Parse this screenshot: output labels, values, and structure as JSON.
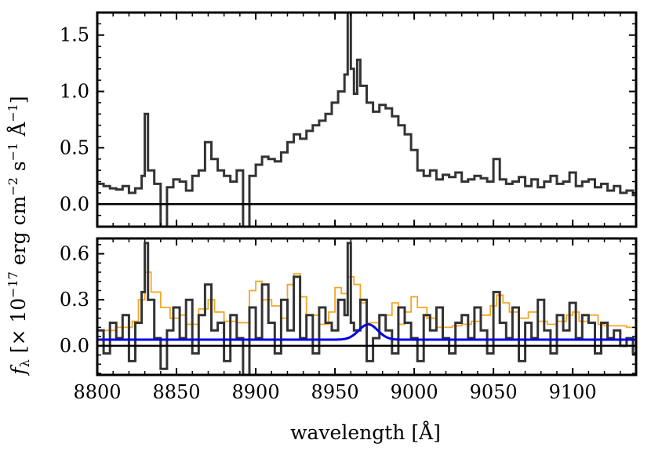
{
  "chart_data": [
    {
      "type": "line",
      "panel": "top",
      "xlim": [
        8800,
        9140
      ],
      "ylim": [
        -0.2,
        1.7
      ],
      "yticks": [
        0.0,
        0.5,
        1.0,
        1.5
      ],
      "ytick_labels": [
        "0.0",
        "0.5",
        "1.0",
        "1.5"
      ],
      "xticks": [
        8800,
        8850,
        8900,
        8950,
        9000,
        9050,
        9100
      ],
      "grid": false,
      "legend": "none",
      "colors": {
        "spectrum": "#333333",
        "zero_line": "#000000"
      },
      "series": [
        {
          "style": "step",
          "x": [
            8800,
            8804,
            8808,
            8812,
            8816,
            8820,
            8824,
            8828,
            8830,
            8832,
            8836,
            8840,
            8844,
            8848,
            8852,
            8856,
            8860,
            8864,
            8868,
            8872,
            8876,
            8880,
            8884,
            8888,
            8892,
            8896,
            8900,
            8904,
            8908,
            8912,
            8916,
            8920,
            8924,
            8928,
            8932,
            8936,
            8940,
            8944,
            8948,
            8952,
            8956,
            8958,
            8960,
            8962,
            8964,
            8966,
            8970,
            8974,
            8978,
            8982,
            8986,
            8990,
            8994,
            8998,
            9002,
            9006,
            9010,
            9014,
            9018,
            9022,
            9026,
            9030,
            9034,
            9038,
            9042,
            9046,
            9050,
            9054,
            9058,
            9062,
            9066,
            9070,
            9074,
            9078,
            9082,
            9086,
            9090,
            9094,
            9098,
            9102,
            9106,
            9110,
            9114,
            9118,
            9122,
            9126,
            9130,
            9134,
            9138
          ],
          "y": [
            0.18,
            0.16,
            0.14,
            0.13,
            0.16,
            0.1,
            0.14,
            0.25,
            0.8,
            0.3,
            0.18,
            -0.2,
            0.15,
            0.22,
            0.2,
            0.12,
            0.25,
            0.3,
            0.55,
            0.4,
            0.3,
            0.25,
            0.2,
            0.3,
            -0.2,
            0.25,
            0.35,
            0.42,
            0.4,
            0.38,
            0.46,
            0.55,
            0.62,
            0.58,
            0.65,
            0.7,
            0.74,
            0.8,
            0.9,
            1.0,
            1.15,
            1.7,
            1.2,
            0.98,
            1.28,
            1.05,
            0.9,
            0.82,
            0.88,
            0.85,
            0.78,
            0.7,
            0.62,
            0.48,
            0.3,
            0.25,
            0.3,
            0.22,
            0.26,
            0.24,
            0.28,
            0.2,
            0.22,
            0.25,
            0.23,
            0.2,
            0.4,
            0.22,
            0.18,
            0.2,
            0.24,
            0.16,
            0.22,
            0.15,
            0.2,
            0.25,
            0.18,
            0.2,
            0.28,
            0.16,
            0.2,
            0.22,
            0.15,
            0.18,
            0.12,
            0.16,
            0.1,
            0.12,
            0.08
          ]
        }
      ]
    },
    {
      "type": "line",
      "panel": "bottom",
      "xlim": [
        8800,
        9140
      ],
      "ylim": [
        -0.19,
        0.7
      ],
      "yticks": [
        0.0,
        0.3,
        0.6
      ],
      "ytick_labels": [
        "0.0",
        "0.3",
        "0.6"
      ],
      "xticks": [
        8800,
        8850,
        8900,
        8950,
        9000,
        9050,
        9100
      ],
      "xtick_labels": [
        "8800",
        "8850",
        "8900",
        "8950",
        "9000",
        "9050",
        "9100"
      ],
      "grid": false,
      "legend": "none",
      "colors": {
        "spectrum": "#333333",
        "error": "#f5a623",
        "model": "#0000e6",
        "zero_line": "#000000"
      },
      "series": [
        {
          "style": "step",
          "role": "spectrum",
          "x": [
            8800,
            8804,
            8808,
            8812,
            8816,
            8820,
            8824,
            8828,
            8830,
            8832,
            8836,
            8840,
            8844,
            8848,
            8852,
            8856,
            8860,
            8864,
            8868,
            8872,
            8876,
            8880,
            8884,
            8888,
            8892,
            8896,
            8900,
            8904,
            8908,
            8912,
            8916,
            8920,
            8924,
            8928,
            8932,
            8936,
            8940,
            8944,
            8948,
            8952,
            8956,
            8958,
            8960,
            8962,
            8966,
            8970,
            8974,
            8978,
            8982,
            8986,
            8990,
            8994,
            8998,
            9002,
            9006,
            9010,
            9014,
            9018,
            9022,
            9026,
            9030,
            9034,
            9038,
            9042,
            9046,
            9050,
            9054,
            9058,
            9062,
            9066,
            9070,
            9074,
            9078,
            9082,
            9086,
            9090,
            9094,
            9098,
            9102,
            9106,
            9110,
            9114,
            9118,
            9122,
            9126,
            9130,
            9134,
            9138
          ],
          "y": [
            0.1,
            -0.05,
            0.15,
            0.05,
            0.2,
            -0.1,
            0.15,
            0.35,
            0.67,
            0.3,
            0.05,
            -0.15,
            0.1,
            0.25,
            0.05,
            0.3,
            -0.05,
            0.2,
            0.4,
            0.1,
            0.15,
            -0.1,
            0.2,
            0.05,
            -0.19,
            0.25,
            0.05,
            0.4,
            0.15,
            -0.05,
            0.3,
            0.1,
            0.45,
            0.05,
            0.2,
            -0.05,
            0.25,
            0.15,
            0.1,
            0.3,
            0.2,
            0.67,
            0.15,
            0.1,
            0.3,
            -0.1,
            0.05,
            0.2,
            0.1,
            -0.05,
            0.25,
            0.15,
            0.05,
            -0.1,
            0.2,
            0.1,
            0.25,
            0.05,
            -0.05,
            0.15,
            0.2,
            0.05,
            0.25,
            0.1,
            -0.05,
            0.35,
            0.15,
            0.05,
            0.25,
            -0.1,
            0.15,
            0.05,
            0.3,
            0.1,
            -0.05,
            0.2,
            0.1,
            0.28,
            0.05,
            0.2,
            0.15,
            -0.05,
            0.15,
            0.05,
            0.1,
            0.0,
            0.05,
            -0.05
          ]
        },
        {
          "style": "step",
          "role": "error",
          "x": [
            8800,
            8812,
            8822,
            8826,
            8830,
            8834,
            8840,
            8846,
            8852,
            8856,
            8864,
            8870,
            8874,
            8880,
            8888,
            8896,
            8900,
            8904,
            8910,
            8916,
            8920,
            8924,
            8928,
            8932,
            8940,
            8946,
            8950,
            8954,
            8958,
            8962,
            8966,
            8970,
            8978,
            8986,
            8990,
            8994,
            8998,
            9002,
            9008,
            9014,
            9018,
            9024,
            9030,
            9036,
            9042,
            9048,
            9052,
            9056,
            9060,
            9066,
            9072,
            9078,
            9084,
            9090,
            9096,
            9100,
            9104,
            9110,
            9116,
            9120,
            9128,
            9134,
            9140
          ],
          "y": [
            0.1,
            0.12,
            0.16,
            0.3,
            0.48,
            0.35,
            0.25,
            0.18,
            0.2,
            0.14,
            0.24,
            0.3,
            0.22,
            0.16,
            0.15,
            0.36,
            0.42,
            0.3,
            0.26,
            0.18,
            0.4,
            0.47,
            0.32,
            0.2,
            0.14,
            0.22,
            0.38,
            0.34,
            0.45,
            0.4,
            0.28,
            0.15,
            0.2,
            0.28,
            0.14,
            0.22,
            0.32,
            0.25,
            0.18,
            0.12,
            0.12,
            0.13,
            0.14,
            0.16,
            0.2,
            0.26,
            0.33,
            0.28,
            0.22,
            0.18,
            0.22,
            0.16,
            0.14,
            0.16,
            0.2,
            0.22,
            0.16,
            0.2,
            0.14,
            0.13,
            0.13,
            0.12,
            0.12
          ]
        },
        {
          "style": "smooth",
          "role": "model",
          "baseline": 0.04,
          "peak_amplitude": 0.1,
          "peak_center": 8971,
          "peak_sigma": 6
        }
      ]
    }
  ],
  "axes_text": {
    "xlabel": "wavelength [Å]",
    "ylabel_main": "f",
    "ylabel_sub": "λ",
    "ylabel_rest": " [× 10",
    "ylabel_exp": "−17",
    "ylabel_units": " erg cm",
    "ylabel_cm_exp": "−2",
    "ylabel_s": " s",
    "ylabel_s_exp": "−1",
    "ylabel_A": " Å",
    "ylabel_A_exp": "−1",
    "ylabel_close": "]"
  }
}
